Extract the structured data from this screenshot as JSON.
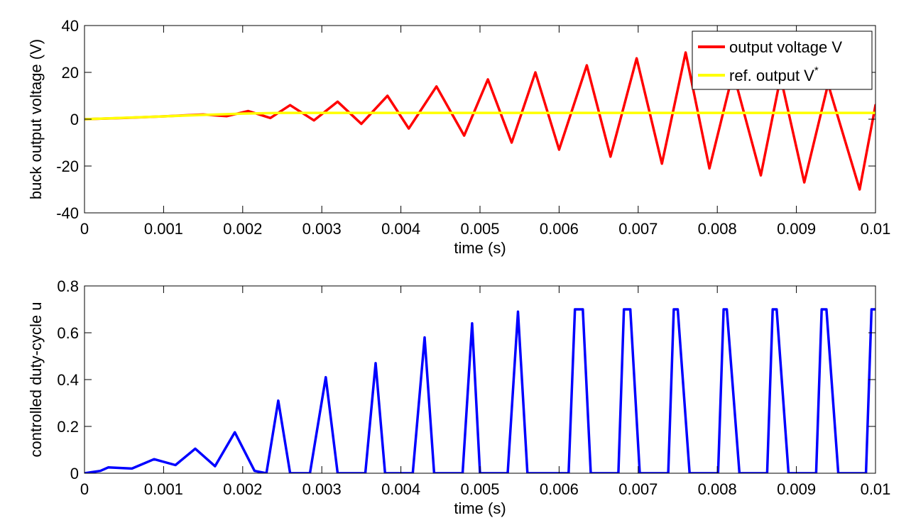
{
  "chart_data": [
    {
      "type": "line",
      "title": "",
      "xlabel": "time (s)",
      "ylabel": "buck output voltage (V)",
      "xlim": [
        0,
        0.01
      ],
      "ylim": [
        -40,
        40
      ],
      "xticks": [
        "0",
        "0.001",
        "0.002",
        "0.003",
        "0.004",
        "0.005",
        "0.006",
        "0.007",
        "0.008",
        "0.009",
        "0.01"
      ],
      "yticks": [
        "-40",
        "-20",
        "0",
        "20",
        "40"
      ],
      "grid": false,
      "legend": {
        "placement": "top-right",
        "entries": [
          {
            "label": "output voltage V",
            "sup": "",
            "color": "#ff0000"
          },
          {
            "label": "ref. output V",
            "sup": "*",
            "color": "#ffff00"
          }
        ]
      },
      "series": [
        {
          "name": "output voltage V",
          "color": "#ff0000",
          "x": [
            0,
            0.0005,
            0.001,
            0.0015,
            0.0018,
            0.00207,
            0.00235,
            0.0026,
            0.0029,
            0.0032,
            0.0035,
            0.00383,
            0.0041,
            0.00445,
            0.0048,
            0.0051,
            0.0054,
            0.0057,
            0.006,
            0.00635,
            0.00665,
            0.00698,
            0.0073,
            0.0076,
            0.0079,
            0.0082,
            0.00855,
            0.0088,
            0.0091,
            0.0094,
            0.0098,
            0.01
          ],
          "y": [
            0,
            0.5,
            1.2,
            2,
            1.3,
            3.5,
            0.5,
            6,
            -0.5,
            7.5,
            -2,
            10,
            -4,
            14,
            -7,
            17,
            -10,
            20,
            -13,
            23,
            -16,
            26,
            -19,
            28.5,
            -21,
            20,
            -24,
            18,
            -27,
            15,
            -30,
            6
          ]
        },
        {
          "name": "ref. output V*",
          "color": "#ffff00",
          "x": [
            0,
            0.001,
            0.002,
            0.0025,
            0.01
          ],
          "y": [
            0,
            1.2,
            2.4,
            2.7,
            2.7
          ]
        }
      ]
    },
    {
      "type": "line",
      "title": "",
      "xlabel": "time (s)",
      "ylabel": "controlled duty-cycle u",
      "xlim": [
        0,
        0.01
      ],
      "ylim": [
        0,
        0.8
      ],
      "xticks": [
        "0",
        "0.001",
        "0.002",
        "0.003",
        "0.004",
        "0.005",
        "0.006",
        "0.007",
        "0.008",
        "0.009",
        "0.01"
      ],
      "yticks": [
        "0",
        "0.2",
        "0.4",
        "0.6",
        "0.8"
      ],
      "grid": false,
      "series": [
        {
          "name": "",
          "color": "#0000ff",
          "x": [
            0,
            0.0002,
            0.0003,
            0.0006,
            0.00088,
            0.00115,
            0.0014,
            0.00165,
            0.0019,
            0.00215,
            0.0023,
            0.00245,
            0.0026,
            0.00285,
            0.00305,
            0.0032,
            0.00355,
            0.00368,
            0.0038,
            0.00415,
            0.0043,
            0.00442,
            0.00478,
            0.0049,
            0.005,
            0.00535,
            0.00548,
            0.0056,
            0.00612,
            0.0062,
            0.0063,
            0.0064,
            0.00675,
            0.00682,
            0.0069,
            0.00702,
            0.00738,
            0.00745,
            0.0075,
            0.00765,
            0.00801,
            0.00808,
            0.00812,
            0.00828,
            0.00863,
            0.0087,
            0.00875,
            0.0089,
            0.00925,
            0.00932,
            0.00938,
            0.00953,
            0.00988,
            0.00995,
            0.01
          ],
          "y": [
            0,
            0.01,
            0.025,
            0.02,
            0.06,
            0.035,
            0.105,
            0.03,
            0.175,
            0.01,
            0,
            0.31,
            0,
            0,
            0.41,
            0,
            0,
            0.47,
            0,
            0,
            0.58,
            0,
            0,
            0.64,
            0,
            0,
            0.69,
            0,
            0,
            0.7,
            0.7,
            0,
            0,
            0.7,
            0.7,
            0,
            0,
            0.7,
            0.7,
            0,
            0,
            0.7,
            0.7,
            0,
            0,
            0.7,
            0.7,
            0,
            0,
            0.7,
            0.7,
            0,
            0,
            0.7,
            0.7
          ]
        }
      ]
    }
  ]
}
